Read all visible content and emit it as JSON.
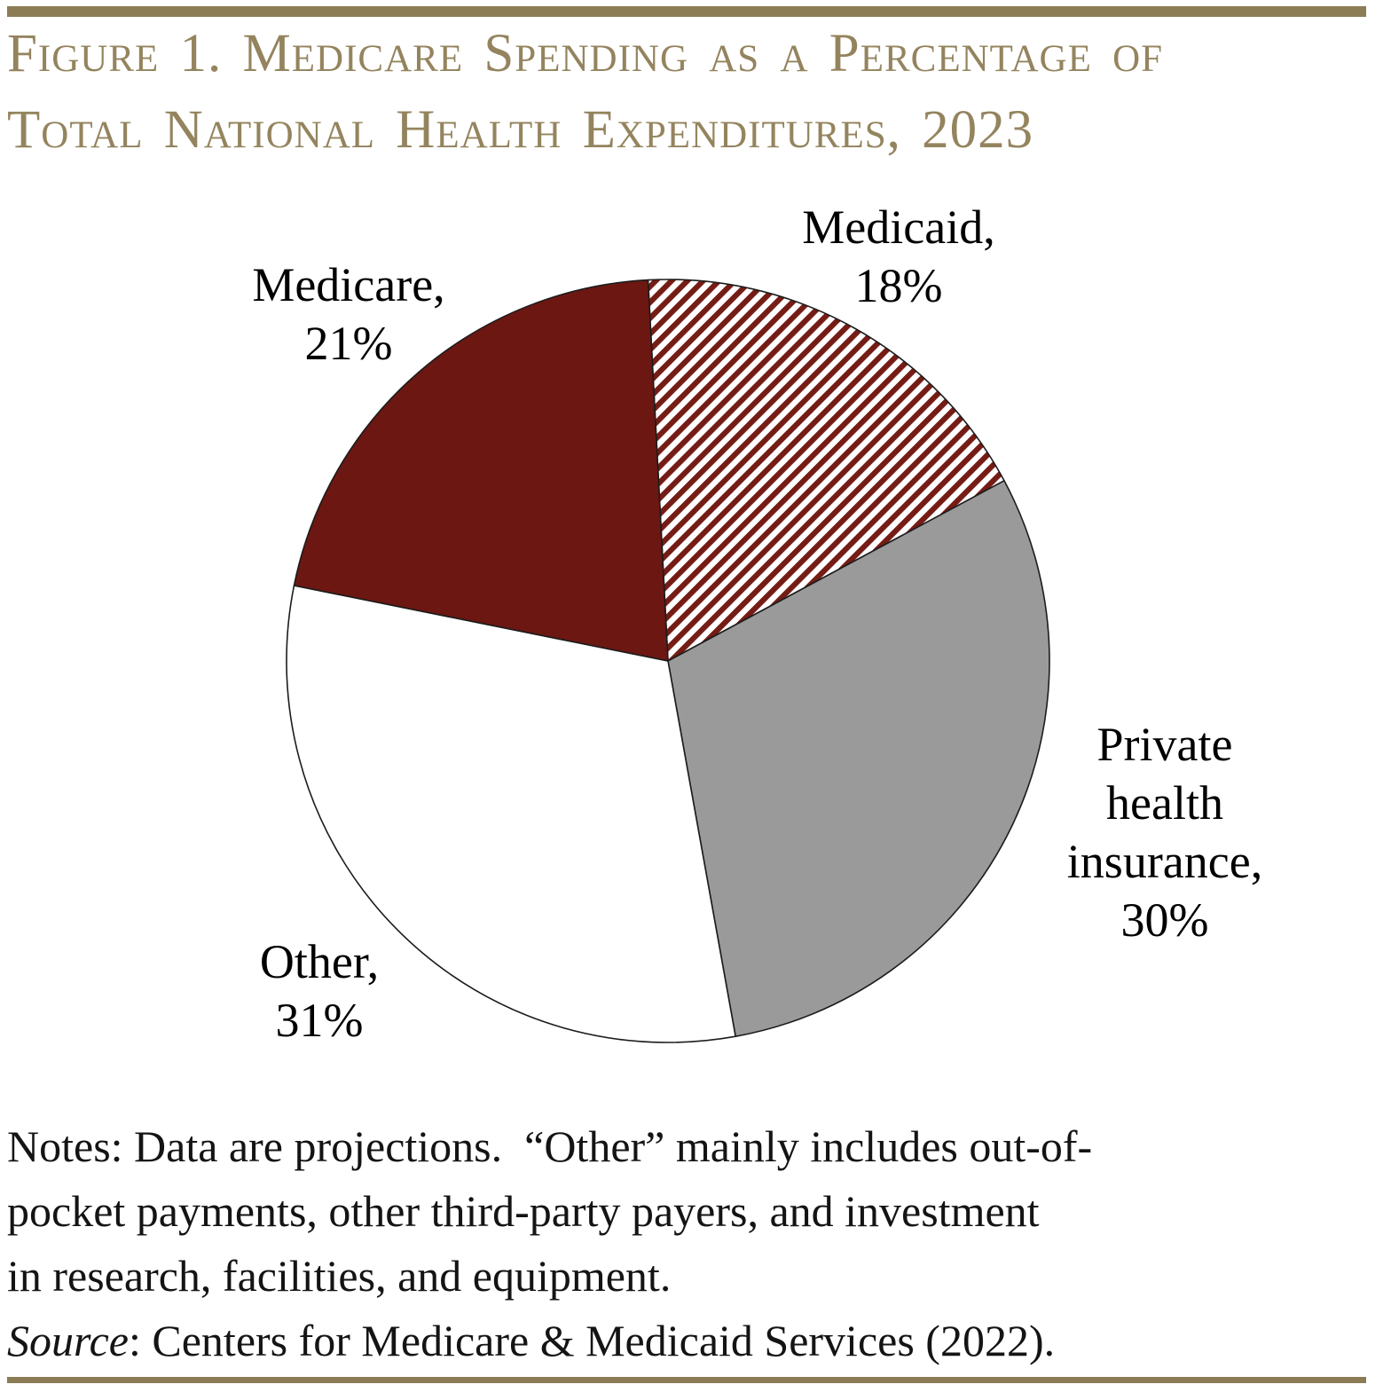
{
  "header": {
    "title_line1": "Figure 1. Medicare Spending as a Percentage of",
    "title_line2": "Total National Health Expenditures, 2023"
  },
  "chart_data": {
    "type": "pie",
    "title": "Figure 1. Medicare Spending as a Percentage of Total National Health Expenditures, 2023",
    "start_angle_deg": -3,
    "direction": "clockwise",
    "legend_position": "outside-labels",
    "slices": [
      {
        "name": "Medicaid",
        "value": 18,
        "label": "Medicaid,\n18%",
        "fill": "hatch",
        "pattern": "diagonal-stripes"
      },
      {
        "name": "Private health insurance",
        "value": 30,
        "label": "Private\nhealth\ninsurance,\n30%",
        "fill": "#9A9A9A"
      },
      {
        "name": "Other",
        "value": 31,
        "label": "Other,\n31%",
        "fill": "#FFFFFF"
      },
      {
        "name": "Medicare",
        "value": 21,
        "label": "Medicare,\n21%",
        "fill": "#6C1712"
      }
    ]
  },
  "notes": {
    "lines": [
      "Notes: Data are projections.  “Other” mainly includes out-of-",
      "pocket payments, other third-party payers, and investment",
      "in research, facilities, and equipment."
    ],
    "source_italic": "Source",
    "source_rest": ": Centers for Medicare & Medicaid Services (2022)."
  },
  "colors": {
    "maroon_solid": "#6C1712",
    "hatch_stripe": "#741C15",
    "gray_slice": "#9A9A9A",
    "white_slice": "#FFFFFF",
    "slice_outline": "#1C1C1C",
    "rule_tan": "#8B7C56",
    "title_tan": "#94845E",
    "label_text": "#000000"
  }
}
